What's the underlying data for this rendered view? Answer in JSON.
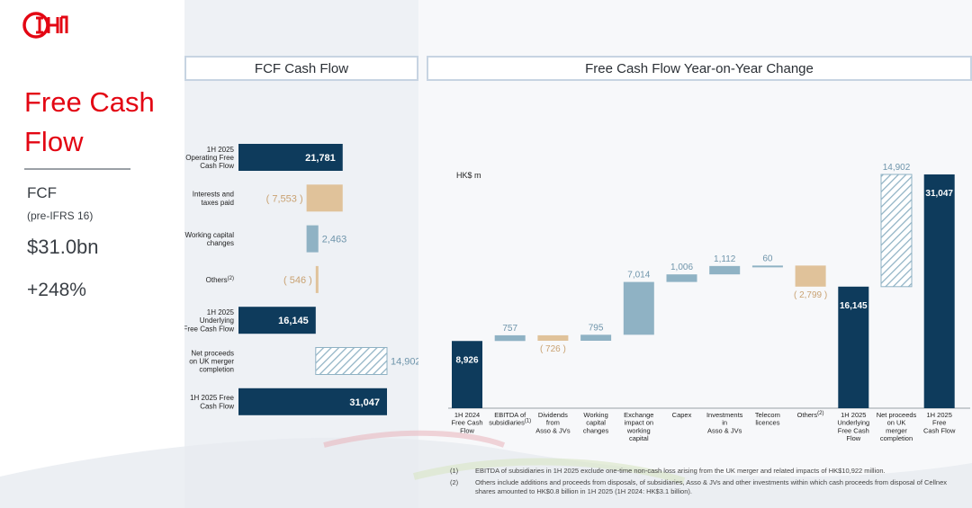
{
  "header": {
    "title": "Free Cash Flow"
  },
  "kpi": {
    "label": "FCF",
    "sublabel": "(pre-IFRS 16)",
    "value": "$31.0bn",
    "change": "+248%"
  },
  "panels": {
    "left_title": "FCF Cash Flow",
    "right_title": "Free Cash Flow Year-on-Year Change",
    "unit": "HK$ m"
  },
  "colors": {
    "brand": "#e30613",
    "dark": "#0e3b5c",
    "light_blue": "#8fb2c4",
    "negative": "#e0c29a",
    "hatch": "#8fb2c4"
  },
  "chart_data": [
    {
      "type": "bar",
      "orientation": "horizontal-waterfall",
      "categories": [
        "1H 2025\nOperating Free\nCash Flow",
        "Interests and\ntaxes paid",
        "Working capital\nchanges",
        "Others(2)",
        "1H 2025\nUnderlying\nFree Cash Flow",
        "Net proceeds\non UK merger\ncompletion",
        "1H 2025 Free\nCash Flow"
      ],
      "values": [
        21781,
        -7553,
        2463,
        -546,
        16145,
        14902,
        31047
      ],
      "kinds": [
        "total",
        "negative",
        "positive",
        "negative",
        "total",
        "hatched",
        "total"
      ],
      "value_labels": [
        "21,781",
        "( 7,553 )",
        "2,463",
        "( 546 )",
        "16,145",
        "14,902",
        "31,047"
      ]
    },
    {
      "type": "bar",
      "orientation": "vertical-waterfall",
      "categories": [
        "1H 2024\nFree Cash\nFlow",
        "EBITDA of\nsubsidiaries(1)",
        "Dividends\nfrom\nAsso & JVs",
        "Working\ncapital\nchanges",
        "Exchange\nimpact on\nworking\ncapital",
        "Capex",
        "Investments\nin\nAsso & JVs",
        "Telecom\nlicences",
        "Others(2)",
        "1H 2025\nUnderlying\nFree Cash\nFlow",
        "Net proceeds\non UK\nmerger\ncompletion",
        "1H 2025\nFree\nCash Flow"
      ],
      "values": [
        8926,
        757,
        -726,
        795,
        7014,
        1006,
        1112,
        60,
        -2799,
        16145,
        14902,
        31047
      ],
      "kinds": [
        "total",
        "positive",
        "negative",
        "positive",
        "positive",
        "positive",
        "positive",
        "positive",
        "negative",
        "total",
        "hatched",
        "total"
      ],
      "value_labels": [
        "8,926",
        "757",
        "( 726 )",
        "795",
        "7,014",
        "1,006",
        "1,112",
        "60",
        "( 2,799 )",
        "16,145",
        "14,902",
        "31,047"
      ],
      "ylabel": "HK$ m"
    }
  ],
  "footnotes": [
    {
      "num": "(1)",
      "text": "EBITDA of subsidiaries in 1H 2025 exclude one-time non-cash loss arising from the UK merger and related impacts of HK$10,922 million."
    },
    {
      "num": "(2)",
      "text": "Others include additions and proceeds from disposals, of subsidiaries, Asso & JVs and other investments within which cash proceeds from disposal of Cellnex shares amounted to HK$0.8 billion in 1H 2025 (1H 2024: HK$3.1 billion)."
    }
  ]
}
